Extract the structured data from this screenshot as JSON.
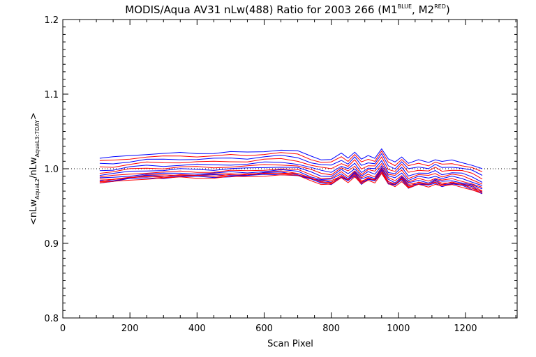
{
  "chart_data": {
    "type": "line",
    "title": {
      "main": "MODIS/Aqua AV31 nLw(488) Ratio for 2003 266 (M1",
      "sup1": "BLUE",
      "mid": ", M2",
      "sup2": "RED",
      "end": ")"
    },
    "xlabel": "Scan Pixel",
    "ylabel": {
      "open": "<nLw",
      "sub1": "AquaL2",
      "mid": "/nLw",
      "sub2": "AquaL3:7DAY",
      "close": ">"
    },
    "xlim": [
      0,
      1354
    ],
    "ylim": [
      0.8,
      1.2
    ],
    "xticks": [
      0,
      200,
      400,
      600,
      800,
      1000,
      1200
    ],
    "xtick_labels": [
      "0",
      "200",
      "400",
      "600",
      "800",
      "1000",
      "1200"
    ],
    "yticks": [
      0.8,
      0.9,
      1.0,
      1.1,
      1.2
    ],
    "ytick_labels": [
      "0.8",
      "0.9",
      "1.0",
      "1.1",
      "1.2"
    ],
    "reference_line": {
      "y": 1.0,
      "style": "dotted"
    },
    "grid": false,
    "colors": {
      "M1": "#0000ff",
      "M2": "#ff0000",
      "axes": "#000000"
    },
    "x": [
      110,
      150,
      200,
      250,
      300,
      350,
      400,
      450,
      500,
      550,
      600,
      650,
      700,
      740,
      770,
      800,
      830,
      850,
      870,
      890,
      910,
      930,
      950,
      970,
      990,
      1010,
      1030,
      1060,
      1090,
      1110,
      1130,
      1160,
      1190,
      1220,
      1250
    ],
    "base_profile": [
      0.985,
      0.986,
      0.989,
      0.991,
      0.991,
      0.992,
      0.992,
      0.992,
      0.993,
      0.993,
      0.995,
      0.996,
      0.994,
      0.988,
      0.984,
      0.983,
      0.991,
      0.986,
      0.994,
      0.983,
      0.988,
      0.986,
      0.998,
      0.983,
      0.98,
      0.988,
      0.978,
      0.982,
      0.98,
      0.984,
      0.98,
      0.982,
      0.98,
      0.976,
      0.97
    ],
    "series": [
      {
        "group": "M1",
        "offset": 0.029
      },
      {
        "group": "M2",
        "offset": 0.025
      },
      {
        "group": "M1",
        "offset": 0.021
      },
      {
        "group": "M2",
        "offset": 0.017
      },
      {
        "group": "M1",
        "offset": 0.013
      },
      {
        "group": "M2",
        "offset": 0.01
      },
      {
        "group": "M1",
        "offset": 0.007
      },
      {
        "group": "M2",
        "offset": 0.004
      },
      {
        "group": "M1",
        "offset": 0.002
      },
      {
        "group": "M2",
        "offset": 0.0
      },
      {
        "group": "M1",
        "offset": -0.001
      },
      {
        "group": "M2",
        "offset": -0.002
      },
      {
        "group": "M1",
        "offset": -0.003
      },
      {
        "group": "M2",
        "offset": -0.001
      },
      {
        "group": "M2",
        "offset": -0.004
      }
    ]
  }
}
